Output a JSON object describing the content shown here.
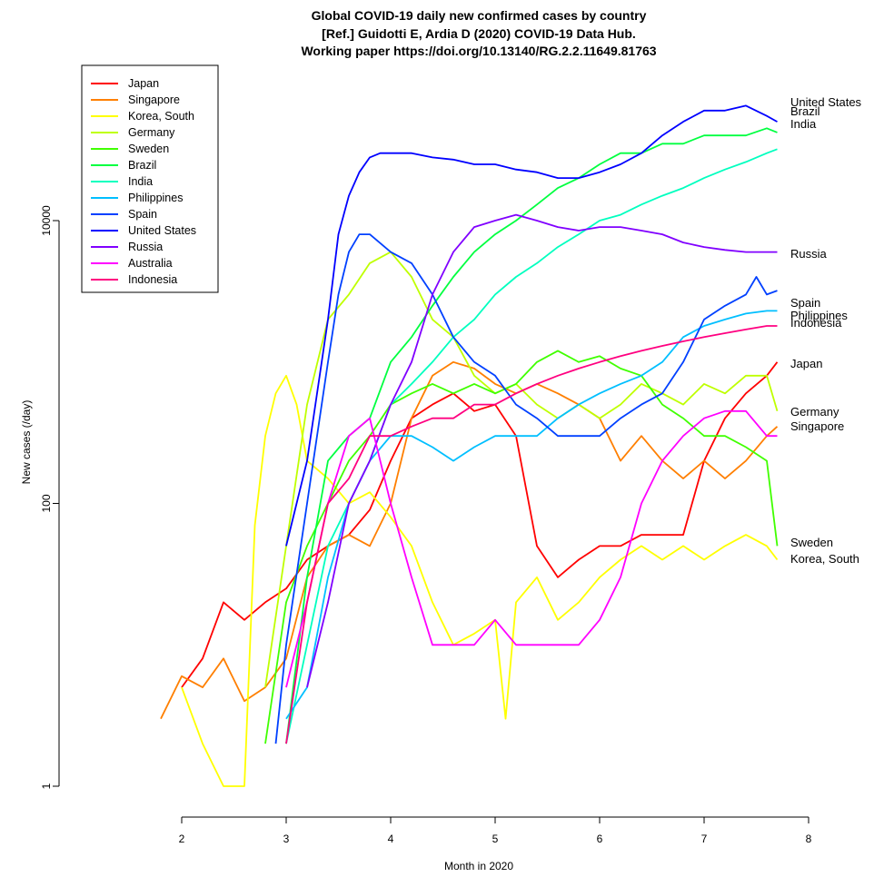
{
  "chart_data": {
    "type": "line",
    "title_lines": [
      "Global COVID-19 daily new confirmed cases by country",
      "[Ref.] Guidotti E, Ardia D (2020) COVID-19 Data Hub.",
      "Working paper https://doi.org/10.13140/RG.2.2.11649.81763"
    ],
    "xlabel": "Month in 2020",
    "ylabel": "New cases (/day)",
    "x_ticks": [
      2,
      3,
      4,
      5,
      6,
      7,
      8
    ],
    "y_ticks": [
      1,
      100,
      10000
    ],
    "xlim": [
      2,
      8
    ],
    "ylim": [
      1,
      70000
    ],
    "y_scale": "log",
    "legend_position": "top-left",
    "series": [
      {
        "name": "Japan",
        "color": "#ff0000",
        "end_label": "Japan",
        "end_value": 1000,
        "x": [
          2.0,
          2.2,
          2.4,
          2.6,
          2.8,
          3.0,
          3.2,
          3.4,
          3.6,
          3.8,
          4.0,
          4.2,
          4.4,
          4.6,
          4.8,
          5.0,
          5.2,
          5.4,
          5.6,
          5.8,
          6.0,
          6.2,
          6.4,
          6.6,
          6.8,
          7.0,
          7.2,
          7.4,
          7.6,
          7.7
        ],
        "y": [
          5,
          8,
          20,
          15,
          20,
          25,
          40,
          50,
          60,
          90,
          200,
          400,
          500,
          600,
          450,
          500,
          300,
          50,
          30,
          40,
          50,
          50,
          60,
          60,
          60,
          200,
          400,
          600,
          800,
          1000
        ]
      },
      {
        "name": "Singapore",
        "color": "#ff7f00",
        "end_label": "Singapore",
        "end_value": 350,
        "x": [
          1.8,
          2.0,
          2.2,
          2.4,
          2.6,
          2.8,
          3.0,
          3.2,
          3.4,
          3.6,
          3.8,
          4.0,
          4.2,
          4.4,
          4.6,
          4.8,
          5.0,
          5.2,
          5.4,
          5.6,
          5.8,
          6.0,
          6.2,
          6.4,
          6.6,
          6.8,
          7.0,
          7.2,
          7.4,
          7.6,
          7.7
        ],
        "y": [
          3,
          6,
          5,
          8,
          4,
          5,
          8,
          30,
          50,
          60,
          50,
          100,
          400,
          800,
          1000,
          900,
          700,
          600,
          700,
          600,
          500,
          400,
          200,
          300,
          200,
          150,
          200,
          150,
          200,
          300,
          350
        ]
      },
      {
        "name": "Korea, South",
        "color": "#ffff00",
        "end_label": "Korea, South",
        "end_value": 40,
        "x": [
          2.0,
          2.2,
          2.4,
          2.6,
          2.7,
          2.8,
          2.9,
          3.0,
          3.1,
          3.2,
          3.4,
          3.6,
          3.8,
          4.0,
          4.2,
          4.4,
          4.6,
          4.8,
          5.0,
          5.1,
          5.2,
          5.4,
          5.6,
          5.8,
          6.0,
          6.2,
          6.4,
          6.6,
          6.8,
          7.0,
          7.2,
          7.4,
          7.6,
          7.7
        ],
        "y": [
          5,
          2,
          1,
          1,
          70,
          300,
          600,
          800,
          500,
          200,
          150,
          100,
          120,
          80,
          50,
          20,
          10,
          12,
          15,
          3,
          20,
          30,
          15,
          20,
          30,
          40,
          50,
          40,
          50,
          40,
          50,
          60,
          50,
          40
        ]
      },
      {
        "name": "Germany",
        "color": "#bfff00",
        "end_label": "Germany",
        "end_value": 450,
        "x": [
          2.8,
          3.0,
          3.2,
          3.4,
          3.6,
          3.8,
          4.0,
          4.2,
          4.4,
          4.6,
          4.8,
          5.0,
          5.2,
          5.4,
          5.6,
          5.8,
          6.0,
          6.2,
          6.4,
          6.6,
          6.8,
          7.0,
          7.2,
          7.4,
          7.6,
          7.7
        ],
        "y": [
          5,
          50,
          500,
          2000,
          3000,
          5000,
          6000,
          4000,
          2000,
          1500,
          800,
          600,
          700,
          500,
          400,
          500,
          400,
          500,
          700,
          600,
          500,
          700,
          600,
          800,
          800,
          450
        ]
      },
      {
        "name": "Sweden",
        "color": "#40ff00",
        "end_label": "Sweden",
        "end_value": 50,
        "x": [
          2.8,
          3.0,
          3.2,
          3.4,
          3.6,
          3.8,
          4.0,
          4.2,
          4.4,
          4.6,
          4.8,
          5.0,
          5.2,
          5.4,
          5.6,
          5.8,
          6.0,
          6.2,
          6.4,
          6.6,
          6.8,
          7.0,
          7.2,
          7.4,
          7.6,
          7.7
        ],
        "y": [
          2,
          20,
          50,
          100,
          200,
          300,
          500,
          600,
          700,
          600,
          700,
          600,
          700,
          1000,
          1200,
          1000,
          1100,
          900,
          800,
          500,
          400,
          300,
          300,
          250,
          200,
          50
        ]
      },
      {
        "name": "Brazil",
        "color": "#00ff40",
        "end_label": "Brazil",
        "end_value": 42000,
        "x": [
          3.0,
          3.2,
          3.4,
          3.6,
          3.8,
          4.0,
          4.2,
          4.4,
          4.6,
          4.8,
          5.0,
          5.2,
          5.4,
          5.6,
          5.8,
          6.0,
          6.2,
          6.4,
          6.6,
          6.8,
          7.0,
          7.2,
          7.4,
          7.6,
          7.7
        ],
        "y": [
          2,
          30,
          200,
          300,
          400,
          1000,
          1500,
          2500,
          4000,
          6000,
          8000,
          10000,
          13000,
          17000,
          20000,
          25000,
          30000,
          30000,
          35000,
          35000,
          40000,
          40000,
          40000,
          45000,
          42000
        ]
      },
      {
        "name": "India",
        "color": "#00ffbf",
        "end_label": "India",
        "end_value": 32000,
        "x": [
          3.0,
          3.2,
          3.4,
          3.6,
          3.8,
          4.0,
          4.2,
          4.4,
          4.6,
          4.8,
          5.0,
          5.2,
          5.4,
          5.6,
          5.8,
          6.0,
          6.2,
          6.4,
          6.6,
          6.8,
          7.0,
          7.2,
          7.4,
          7.6,
          7.7
        ],
        "y": [
          2,
          10,
          50,
          100,
          200,
          500,
          700,
          1000,
          1500,
          2000,
          3000,
          4000,
          5000,
          6500,
          8000,
          10000,
          11000,
          13000,
          15000,
          17000,
          20000,
          23000,
          26000,
          30000,
          32000
        ]
      },
      {
        "name": "Philippines",
        "color": "#00bfff",
        "end_label": "Philippines",
        "end_value": 2300,
        "x": [
          3.0,
          3.2,
          3.4,
          3.6,
          3.8,
          4.0,
          4.2,
          4.4,
          4.6,
          4.8,
          5.0,
          5.2,
          5.4,
          5.6,
          5.8,
          6.0,
          6.2,
          6.4,
          6.6,
          6.8,
          7.0,
          7.2,
          7.4,
          7.6,
          7.7
        ],
        "y": [
          3,
          5,
          30,
          100,
          200,
          300,
          300,
          250,
          200,
          250,
          300,
          300,
          300,
          400,
          500,
          600,
          700,
          800,
          1000,
          1500,
          1800,
          2000,
          2200,
          2300,
          2300
        ]
      },
      {
        "name": "Spain",
        "color": "#0040ff",
        "end_label": "Spain",
        "end_value": 3200,
        "x": [
          2.9,
          3.0,
          3.2,
          3.4,
          3.5,
          3.6,
          3.7,
          3.8,
          4.0,
          4.2,
          4.4,
          4.6,
          4.8,
          5.0,
          5.2,
          5.4,
          5.6,
          5.8,
          6.0,
          6.2,
          6.4,
          6.6,
          6.8,
          7.0,
          7.2,
          7.4,
          7.5,
          7.6,
          7.7
        ],
        "y": [
          2,
          10,
          100,
          1000,
          3000,
          6000,
          8000,
          8000,
          6000,
          5000,
          3000,
          1500,
          1000,
          800,
          500,
          400,
          300,
          300,
          300,
          400,
          500,
          600,
          1000,
          2000,
          2500,
          3000,
          4000,
          3000,
          3200
        ]
      },
      {
        "name": "United States",
        "color": "#0000ff",
        "end_label": "United States",
        "end_value": 50000,
        "x": [
          3.0,
          3.2,
          3.4,
          3.5,
          3.6,
          3.7,
          3.8,
          3.9,
          4.0,
          4.2,
          4.4,
          4.6,
          4.8,
          5.0,
          5.2,
          5.4,
          5.6,
          5.8,
          6.0,
          6.2,
          6.4,
          6.6,
          6.8,
          7.0,
          7.2,
          7.4,
          7.6,
          7.7
        ],
        "y": [
          50,
          200,
          2000,
          8000,
          15000,
          22000,
          28000,
          30000,
          30000,
          30000,
          28000,
          27000,
          25000,
          25000,
          23000,
          22000,
          20000,
          20000,
          22000,
          25000,
          30000,
          40000,
          50000,
          60000,
          60000,
          65000,
          55000,
          50000
        ]
      },
      {
        "name": "Russia",
        "color": "#8000ff",
        "end_label": "Russia",
        "end_value": 6000,
        "x": [
          3.2,
          3.4,
          3.6,
          3.8,
          4.0,
          4.2,
          4.4,
          4.6,
          4.8,
          5.0,
          5.2,
          5.4,
          5.6,
          5.8,
          6.0,
          6.2,
          6.4,
          6.6,
          6.8,
          7.0,
          7.2,
          7.4,
          7.6,
          7.7
        ],
        "y": [
          5,
          20,
          100,
          200,
          500,
          1000,
          3000,
          6000,
          9000,
          10000,
          11000,
          10000,
          9000,
          8500,
          9000,
          9000,
          8500,
          8000,
          7000,
          6500,
          6200,
          6000,
          6000,
          6000
        ]
      },
      {
        "name": "Australia",
        "color": "#ff00ff",
        "end_label": "",
        "end_value": null,
        "x": [
          3.0,
          3.2,
          3.4,
          3.6,
          3.8,
          4.0,
          4.2,
          4.4,
          4.6,
          4.8,
          5.0,
          5.2,
          5.4,
          5.6,
          5.8,
          6.0,
          6.2,
          6.4,
          6.6,
          6.8,
          7.0,
          7.2,
          7.4,
          7.6,
          7.7
        ],
        "y": [
          5,
          20,
          100,
          300,
          400,
          100,
          30,
          10,
          10,
          10,
          15,
          10,
          10,
          10,
          10,
          15,
          30,
          100,
          200,
          300,
          400,
          450,
          450,
          300,
          300
        ]
      },
      {
        "name": "Indonesia",
        "color": "#ff0080",
        "end_label": "Indonesia",
        "end_value": 1800,
        "x": [
          3.0,
          3.2,
          3.4,
          3.6,
          3.8,
          4.0,
          4.2,
          4.4,
          4.6,
          4.8,
          5.0,
          5.2,
          5.4,
          5.6,
          5.8,
          6.0,
          6.2,
          6.4,
          6.6,
          6.8,
          7.0,
          7.2,
          7.4,
          7.6,
          7.7
        ],
        "y": [
          2,
          20,
          100,
          150,
          300,
          300,
          350,
          400,
          400,
          500,
          500,
          600,
          700,
          800,
          900,
          1000,
          1100,
          1200,
          1300,
          1400,
          1500,
          1600,
          1700,
          1800,
          1800
        ]
      }
    ]
  }
}
